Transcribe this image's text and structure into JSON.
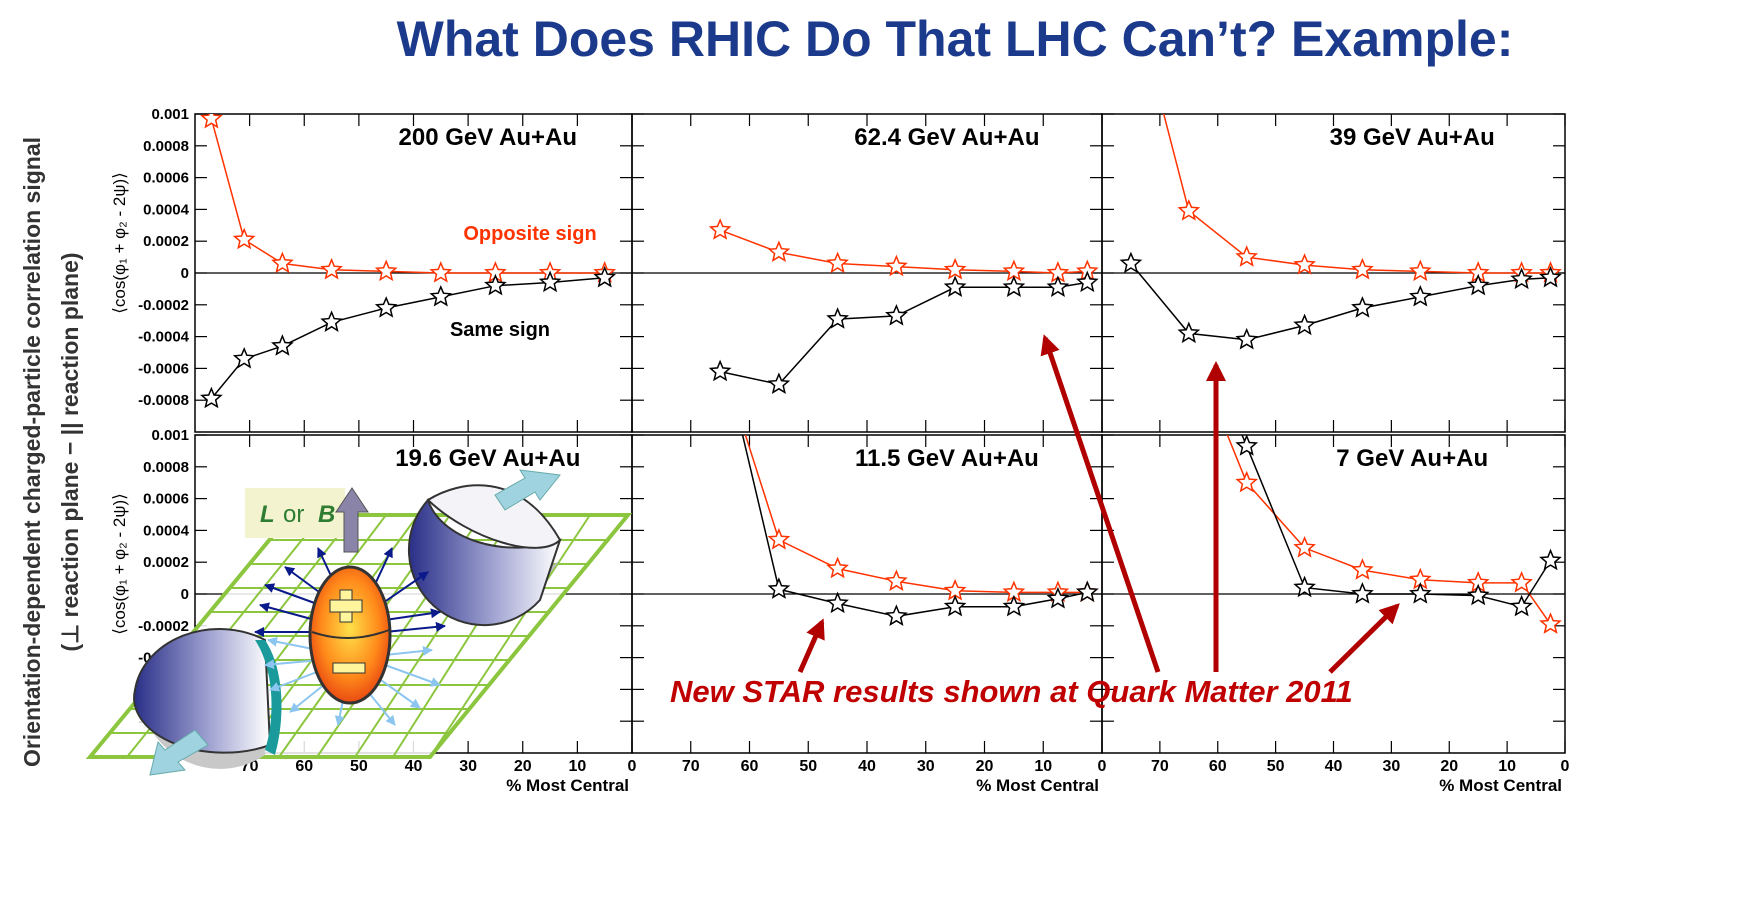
{
  "slide": {
    "title": "What Does RHIC Do That LHC Can’t?  Example:",
    "side_label": [
      "Orientation-dependent charged-particle correlation signal",
      "(⊥ reaction plane − || reaction plane)"
    ],
    "note": "New STAR results shown at Quark Matter 2011"
  },
  "illustration": {
    "labels": [
      "L",
      "or",
      "B"
    ]
  },
  "chart_data": [
    {
      "type": "line",
      "title": "200 GeV Au+Au",
      "ylabel": "⟨cos(φ₁ + φ₂ - 2ψ)⟩",
      "x": [
        77,
        71,
        64,
        55,
        45,
        35,
        25,
        15,
        5
      ],
      "series": [
        {
          "color": "#ff3300",
          "values": [
            0.00097,
            0.00021,
            6e-05,
            2e-05,
            1e-05,
            0,
            0,
            0,
            0
          ]
        },
        {
          "color": "#000000",
          "values": [
            -0.00079,
            -0.00054,
            -0.00046,
            -0.00031,
            -0.00022,
            -0.00015,
            -8e-05,
            -6e-05,
            -3e-05
          ]
        }
      ],
      "annotations": [
        {
          "text": "Opposite sign",
          "color": "#ff3300"
        },
        {
          "text": "Same sign",
          "color": "#000000"
        }
      ],
      "xlim": [
        80,
        0
      ],
      "ylim": [
        -0.001,
        0.001
      ],
      "xticks": [
        70,
        60,
        50,
        40,
        30,
        20,
        10,
        0
      ],
      "yticks": [
        0.001,
        0.0008,
        0.0006,
        0.0004,
        0.0002,
        0,
        -0.0002,
        -0.0004,
        -0.0006,
        -0.0008
      ]
    },
    {
      "type": "line",
      "title": "62.4 GeV Au+Au",
      "x": [
        65,
        55,
        45,
        35,
        25,
        15,
        7.5,
        2.5
      ],
      "series": [
        {
          "color": "#ff3300",
          "values": [
            0.00027,
            0.00013,
            6e-05,
            4e-05,
            2e-05,
            1e-05,
            0,
            1e-05
          ]
        },
        {
          "color": "#000000",
          "values": [
            -0.00062,
            -0.0007,
            -0.00029,
            -0.00027,
            -9e-05,
            -9e-05,
            -9e-05,
            -6e-05
          ]
        }
      ],
      "xlim": [
        80,
        0
      ],
      "ylim": [
        -0.001,
        0.001
      ],
      "xticks": [
        70,
        60,
        50,
        40,
        30,
        20,
        10,
        0
      ],
      "yticks": [
        0.001,
        0.0008,
        0.0006,
        0.0004,
        0.0002,
        0,
        -0.0002,
        -0.0004,
        -0.0006,
        -0.0008
      ]
    },
    {
      "type": "line",
      "title": "39 GeV Au+Au",
      "x": [
        75,
        65,
        55,
        45,
        35,
        25,
        15,
        7.5,
        2.5
      ],
      "series": [
        {
          "color": "#ff3300",
          "values": [
            0.0018,
            0.00039,
            0.0001,
            5e-05,
            2e-05,
            1e-05,
            0,
            0,
            0
          ]
        },
        {
          "color": "#000000",
          "values": [
            6e-05,
            -0.00038,
            -0.00042,
            -0.00033,
            -0.00022,
            -0.00015,
            -8e-05,
            -4e-05,
            -3e-05
          ]
        }
      ],
      "xlim": [
        80,
        0
      ],
      "ylim": [
        -0.001,
        0.001
      ],
      "xticks": [
        70,
        60,
        50,
        40,
        30,
        20,
        10,
        0
      ],
      "yticks": [
        0.001,
        0.0008,
        0.0006,
        0.0004,
        0.0002,
        0,
        -0.0002,
        -0.0004,
        -0.0006,
        -0.0008
      ]
    },
    {
      "type": "line",
      "title": "19.6 GeV Au+Au",
      "ylabel": "⟨cos(φ₁ + φ₂ - 2ψ)⟩",
      "xlabel": "% Most Central",
      "x": [],
      "series": [],
      "xlim": [
        80,
        0
      ],
      "ylim": [
        -0.001,
        0.001
      ],
      "xticks": [
        70,
        60,
        50,
        40,
        30,
        20,
        10,
        0
      ],
      "yticks": [
        0.001,
        0.0008,
        0.0006,
        0.0004,
        0.0002,
        0,
        -0.0002,
        -0.0004,
        -0.0006,
        -0.0008
      ]
    },
    {
      "type": "line",
      "title": "11.5 GeV Au+Au",
      "xlabel": "% Most Central",
      "x": [
        65,
        55,
        45,
        35,
        25,
        15,
        7.5,
        2.5
      ],
      "series": [
        {
          "color": "#ff3300",
          "values": [
            0.0015,
            0.00034,
            0.00016,
            8e-05,
            2e-05,
            1e-05,
            1e-05,
            1e-05
          ]
        },
        {
          "color": "#000000",
          "values": [
            0.0016,
            3e-05,
            -6e-05,
            -0.00014,
            -8e-05,
            -8e-05,
            -3e-05,
            1e-05
          ]
        }
      ],
      "xlim": [
        80,
        0
      ],
      "ylim": [
        -0.001,
        0.001
      ],
      "xticks": [
        70,
        60,
        50,
        40,
        30,
        20,
        10,
        0
      ],
      "yticks": [
        0.001,
        0.0008,
        0.0006,
        0.0004,
        0.0002,
        0,
        -0.0002,
        -0.0004,
        -0.0006,
        -0.0008
      ]
    },
    {
      "type": "line",
      "title": "7 GeV Au+Au",
      "xlabel": "% Most Central",
      "x": [
        65,
        55,
        45,
        35,
        25,
        15,
        7.5,
        2.5
      ],
      "series": [
        {
          "color": "#ff3300",
          "values": [
            0.0016,
            0.0007,
            0.00029,
            0.00015,
            9e-05,
            7e-05,
            7e-05,
            -0.00019
          ]
        },
        {
          "color": "#000000",
          "values": [
            0.0018,
            0.00093,
            4e-05,
            0,
            0,
            -1e-05,
            -8e-05,
            0.00021
          ]
        }
      ],
      "xlim": [
        80,
        0
      ],
      "ylim": [
        -0.001,
        0.001
      ],
      "xticks": [
        70,
        60,
        50,
        40,
        30,
        20,
        10,
        0
      ],
      "yticks": [
        0.001,
        0.0008,
        0.0006,
        0.0004,
        0.0002,
        0,
        -0.0002,
        -0.0004,
        -0.0006,
        -0.0008
      ]
    }
  ]
}
